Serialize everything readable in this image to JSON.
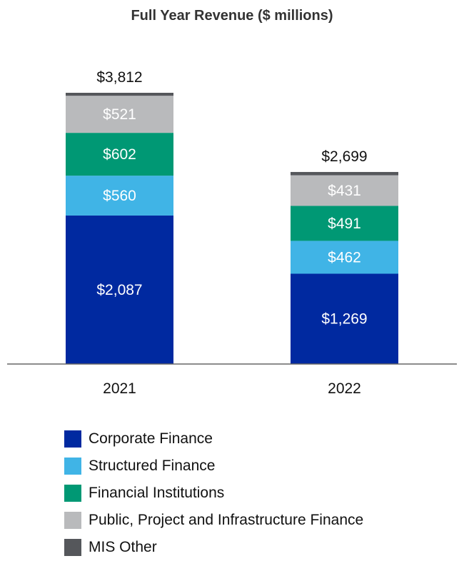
{
  "chart_data": {
    "type": "bar",
    "stacked": true,
    "title": "Full Year Revenue ($ millions)",
    "categories": [
      "2021",
      "2022"
    ],
    "series": [
      {
        "name": "Corporate Finance",
        "values": [
          2087,
          1269
        ],
        "labels": [
          "$2,087",
          "$1,269"
        ],
        "color": "#0029a0"
      },
      {
        "name": "Structured Finance",
        "values": [
          560,
          462
        ],
        "labels": [
          "$560",
          "$462"
        ],
        "color": "#40b4e6"
      },
      {
        "name": "Financial Institutions",
        "values": [
          602,
          491
        ],
        "labels": [
          "$602",
          "$491"
        ],
        "color": "#009874"
      },
      {
        "name": "Public, Project and Infrastructure Finance",
        "values": [
          521,
          431
        ],
        "labels": [
          "$521",
          "$431"
        ],
        "color": "#b9babc"
      },
      {
        "name": "MIS Other",
        "values": [
          42,
          46
        ],
        "labels": [
          "",
          ""
        ],
        "color": "#55575b"
      }
    ],
    "totals": [
      "$3,812",
      "$2,699"
    ],
    "total_values": [
      3812,
      2699
    ],
    "ylim": [
      0,
      3812
    ],
    "grid": false,
    "y_axis_shown": false,
    "legend_placement": "bottom-left"
  }
}
